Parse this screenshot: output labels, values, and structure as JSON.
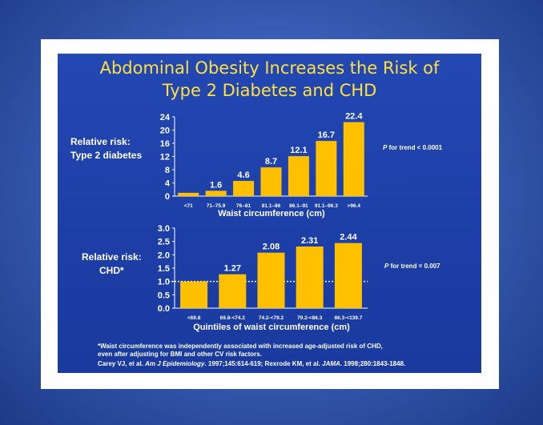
{
  "title_line1": "Abdominal Obesity Increases the Risk of",
  "title_line2": "Type 2 Diabetes and CHD",
  "chart_data": [
    {
      "type": "bar",
      "ylabel_lines": [
        "Relative risk:",
        "Type 2 diabetes"
      ],
      "xlabel": "Waist circumference (cm)",
      "categories": [
        "<71",
        "71–75.9",
        "76–81",
        "81.1–86",
        "86.1–91",
        "91.1–96.3",
        ">96.4"
      ],
      "values": [
        1.0,
        1.6,
        4.6,
        8.7,
        12.1,
        16.7,
        22.4
      ],
      "data_labels": [
        "",
        "1.6",
        "4.6",
        "8.7",
        "12.1",
        "16.7",
        "22.4"
      ],
      "yticks": [
        "0",
        "4",
        "8",
        "12",
        "16",
        "20",
        "24"
      ],
      "ylim": [
        0,
        24
      ],
      "annotation_italic": "P",
      "annotation_rest": " for trend < 0.0001",
      "bar_color": "#ffc000"
    },
    {
      "type": "bar",
      "ylabel_lines": [
        "Relative risk:",
        "CHD*"
      ],
      "xlabel": "Quintiles of waist circumference (cm)",
      "categories": [
        "<69.8",
        "69.8-<74.2",
        "74.2-<79.2",
        "79.2-<86.3",
        "86.3-<139.7"
      ],
      "values": [
        1.0,
        1.27,
        2.08,
        2.31,
        2.44
      ],
      "data_labels": [
        "",
        "1.27",
        "2.08",
        "2.31",
        "2.44"
      ],
      "yticks": [
        "0.0",
        "0.5",
        "1.0",
        "1.5",
        "2.0",
        "2.5",
        "3.0"
      ],
      "ylim": [
        0,
        3
      ],
      "reference_line": 1.0,
      "annotation_italic": "P",
      "annotation_rest": " for trend = 0.007",
      "bar_color": "#ffc000"
    }
  ],
  "footnote_line1": "*Waist circumference was independently associated with increased age-adjusted risk of CHD,",
  "footnote_line2": "even after adjusting for BMI and other CV risk factors.",
  "citation": {
    "a": "Carey VJ, et al. ",
    "a_journal": "Am J Epidemiology",
    "b": ". 1997;145:614-619; Rexrode KM, et al. ",
    "b_journal": "JAMA",
    "c": ". 1998;280:1843-1848."
  }
}
